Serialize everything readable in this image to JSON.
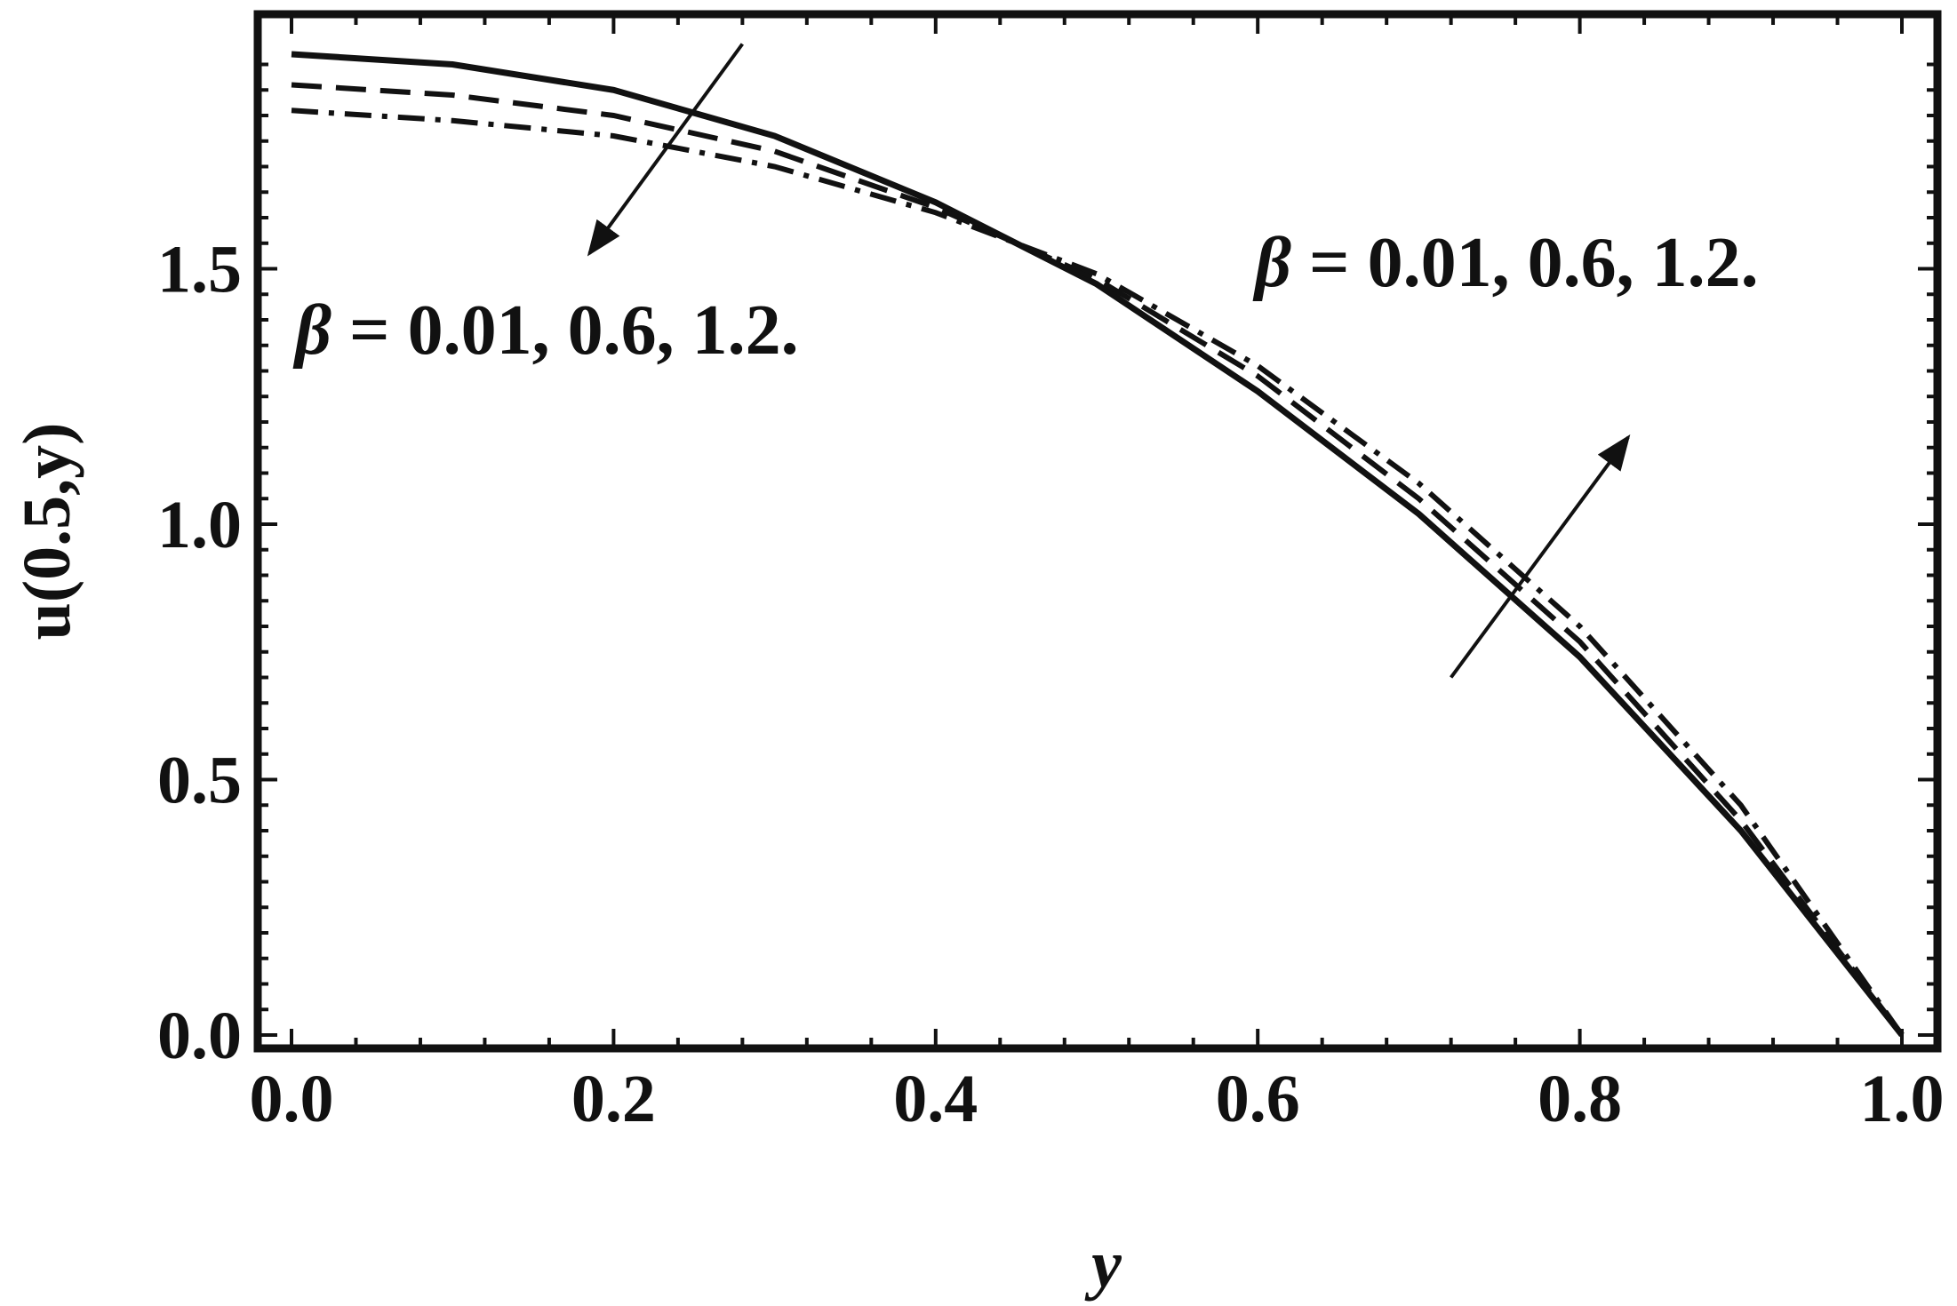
{
  "chart_data": {
    "type": "line",
    "title": "",
    "xlabel": "y",
    "ylabel": "u(0.5,y)",
    "xlim": [
      0.0,
      1.0
    ],
    "ylim": [
      0.0,
      1.95
    ],
    "xticks": [
      "0.0",
      "0.2",
      "0.4",
      "0.6",
      "0.8",
      "1.0"
    ],
    "yticks": [
      "0.0",
      "0.5",
      "1.0",
      "1.5"
    ],
    "grid": false,
    "series": [
      {
        "style": "solid",
        "color": "#111111",
        "x": [
          0.0,
          0.1,
          0.2,
          0.3,
          0.4,
          0.5,
          0.6,
          0.7,
          0.8,
          0.9,
          1.0
        ],
        "values": [
          1.92,
          1.9,
          1.85,
          1.76,
          1.63,
          1.47,
          1.26,
          1.02,
          0.74,
          0.4,
          0.0
        ]
      },
      {
        "style": "dashed",
        "color": "#111111",
        "x": [
          0.0,
          0.1,
          0.2,
          0.3,
          0.4,
          0.5,
          0.6,
          0.7,
          0.8,
          0.9,
          1.0
        ],
        "values": [
          1.86,
          1.84,
          1.8,
          1.73,
          1.62,
          1.48,
          1.29,
          1.05,
          0.77,
          0.42,
          0.0
        ]
      },
      {
        "style": "dash-dot",
        "color": "#111111",
        "x": [
          0.0,
          0.1,
          0.2,
          0.3,
          0.4,
          0.5,
          0.6,
          0.7,
          0.8,
          0.9,
          1.0
        ],
        "values": [
          1.81,
          1.79,
          1.76,
          1.7,
          1.61,
          1.49,
          1.31,
          1.08,
          0.8,
          0.45,
          0.0
        ]
      }
    ],
    "annotations": [
      {
        "text_prefix": "β",
        "text": " = 0.01, 0.6, 1.2.",
        "placement": "upper-left"
      },
      {
        "text_prefix": "β",
        "text": " = 0.01, 0.6, 1.2.",
        "placement": "right"
      }
    ],
    "arrows": [
      {
        "from": [
          0.28,
          1.94
        ],
        "to": [
          0.185,
          1.53
        ],
        "direction": "down-left"
      },
      {
        "from": [
          0.72,
          0.7
        ],
        "to": [
          0.83,
          1.17
        ],
        "direction": "up-right"
      }
    ]
  }
}
